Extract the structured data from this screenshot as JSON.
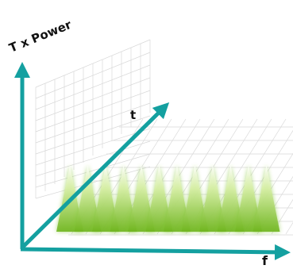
{
  "axes": {
    "y_label": "T x Power",
    "t_label": "t",
    "f_label": "f"
  }
}
